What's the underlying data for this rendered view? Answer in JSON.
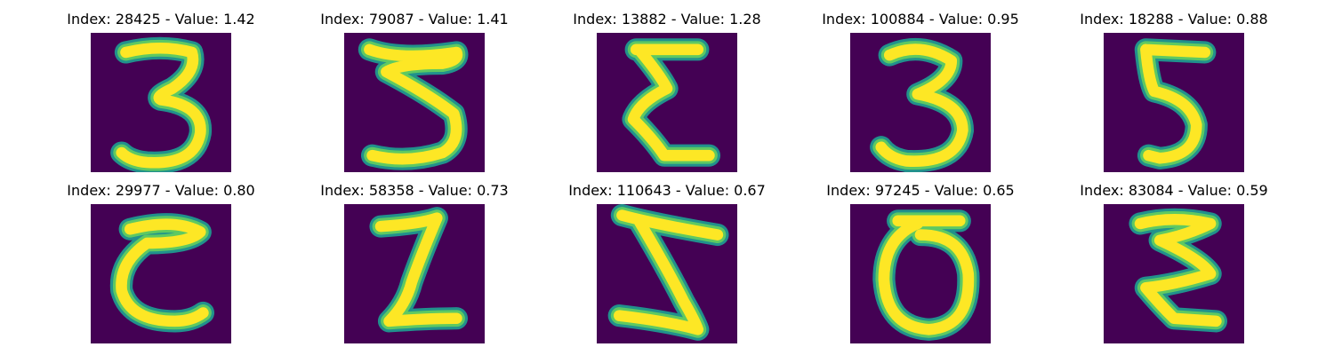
{
  "colors": {
    "background": "#440154",
    "ink_outer": "#21918c",
    "ink_mid": "#5ec962",
    "ink_inner": "#fde725"
  },
  "samples": [
    {
      "index_label": "Index: 28425 - Value: 1.42",
      "digit": "3"
    },
    {
      "index_label": "Index: 79087 - Value: 1.41",
      "digit": "5"
    },
    {
      "index_label": "Index: 13882 - Value: 1.28",
      "digit": "Σ"
    },
    {
      "index_label": "Index: 100884 - Value: 0.95",
      "digit": "3"
    },
    {
      "index_label": "Index: 18288 - Value: 0.88",
      "digit": "5"
    },
    {
      "index_label": "Index: 29977 - Value: 0.80",
      "digit": "C"
    },
    {
      "index_label": "Index: 58358 - Value: 0.73",
      "digit": "Z"
    },
    {
      "index_label": "Index: 110643 - Value: 0.67",
      "digit": "Z"
    },
    {
      "index_label": "Index: 97245 - Value: 0.65",
      "digit": "O"
    },
    {
      "index_label": "Index: 83084 - Value: 0.59",
      "digit": "Σ"
    }
  ]
}
